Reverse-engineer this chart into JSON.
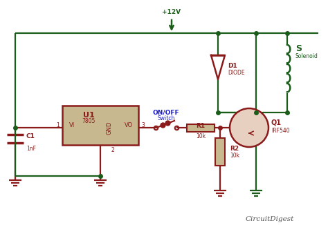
{
  "bg_color": "#ffffff",
  "wire_color_dark": "#1a5c1a",
  "wire_color_red": "#8b1a1a",
  "component_fill": "#c8b890",
  "component_border": "#8b1a1a",
  "text_color_dark": "#1a5c1a",
  "text_color_red": "#8b1a1a",
  "text_color_blue": "#1a1acd",
  "transistor_fill": "#e8d0c0",
  "brand_color": "#555555",
  "supply_label": "+12V",
  "u1_label": "U1",
  "u1_sub": "7805",
  "u1_vi": "VI",
  "u1_vo": "VO",
  "u1_gnd": "GND",
  "c1_label": "C1",
  "c1_sub": "1nF",
  "r1_label": "R1",
  "r1_sub": "10k",
  "r2_label": "R2",
  "r2_sub": "10k",
  "d1_label": "D1",
  "d1_sub": "DIODE",
  "q1_label": "Q1",
  "q1_sub": "IRF540",
  "s_label": "S",
  "s_sub": "Solenoid",
  "sw_label": "ON/OFF",
  "sw_sub": "Switch",
  "pin1": "1",
  "pin2": "2",
  "pin3": "3",
  "brand": "CircuitDigest"
}
